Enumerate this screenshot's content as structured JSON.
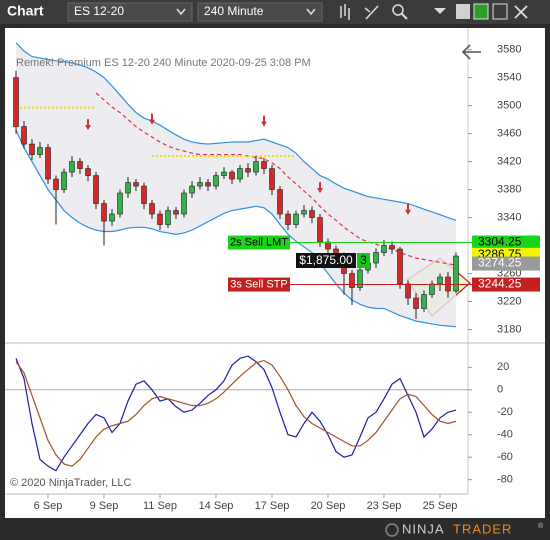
{
  "toolbar": {
    "tab": "Chart",
    "instrument": "ES 12-20",
    "interval": "240 Minute"
  },
  "chart_data": [
    {
      "type": "candlestick",
      "title": "Remek!  Premium  ES 12-20  240 Minute  2020-09-25 3:08 PM",
      "categories": [
        null,
        null,
        null,
        null,
        "6 Sep",
        null,
        null,
        null,
        null,
        null,
        null,
        "9 Sep",
        null,
        null,
        null,
        null,
        null,
        null,
        "11 Sep",
        null,
        null,
        null,
        null,
        null,
        null,
        "14 Sep",
        null,
        null,
        null,
        null,
        null,
        null,
        "17 Sep",
        null,
        null,
        null,
        null,
        null,
        null,
        "20 Sep",
        null,
        null,
        null,
        null,
        null,
        null,
        "23 Sep",
        null,
        null,
        null,
        null,
        null,
        null,
        "25 Sep",
        null,
        null
      ],
      "open": [
        3540,
        3470,
        3445,
        3430,
        3440,
        3395,
        3380,
        3405,
        3420,
        3410,
        3400,
        3360,
        3335,
        3345,
        3375,
        3390,
        3385,
        3360,
        3345,
        3330,
        3350,
        3345,
        3375,
        3385,
        3390,
        3385,
        3400,
        3405,
        3395,
        3410,
        3405,
        3420,
        3410,
        3380,
        3345,
        3330,
        3345,
        3350,
        3340,
        3305,
        3295,
        3285,
        3260,
        3240,
        3265,
        3275,
        3290,
        3300,
        3295,
        3245,
        3225,
        3210,
        3230,
        3245,
        3255,
        3235
      ],
      "high": [
        3550,
        3478,
        3452,
        3448,
        3445,
        3400,
        3410,
        3428,
        3425,
        3415,
        3405,
        3365,
        3352,
        3380,
        3398,
        3395,
        3390,
        3365,
        3350,
        3356,
        3355,
        3380,
        3392,
        3398,
        3395,
        3405,
        3412,
        3408,
        3415,
        3418,
        3428,
        3425,
        3415,
        3385,
        3350,
        3350,
        3358,
        3356,
        3345,
        3310,
        3300,
        3290,
        3265,
        3270,
        3282,
        3296,
        3308,
        3306,
        3298,
        3250,
        3232,
        3236,
        3250,
        3260,
        3262,
        3290
      ],
      "low": [
        3460,
        3438,
        3422,
        3425,
        3388,
        3330,
        3375,
        3398,
        3402,
        3392,
        3352,
        3300,
        3328,
        3340,
        3368,
        3378,
        3352,
        3338,
        3322,
        3325,
        3338,
        3340,
        3368,
        3380,
        3378,
        3380,
        3395,
        3388,
        3390,
        3398,
        3400,
        3402,
        3372,
        3338,
        3322,
        3325,
        3340,
        3332,
        3298,
        3285,
        3275,
        3230,
        3215,
        3235,
        3260,
        3268,
        3285,
        3288,
        3238,
        3215,
        3195,
        3205,
        3225,
        3235,
        3225,
        3232
      ],
      "close": [
        3470,
        3445,
        3430,
        3440,
        3395,
        3380,
        3405,
        3420,
        3410,
        3400,
        3360,
        3335,
        3345,
        3375,
        3390,
        3385,
        3360,
        3345,
        3330,
        3350,
        3345,
        3375,
        3385,
        3390,
        3385,
        3400,
        3405,
        3395,
        3410,
        3405,
        3420,
        3410,
        3380,
        3345,
        3330,
        3345,
        3350,
        3340,
        3305,
        3295,
        3285,
        3260,
        3240,
        3265,
        3275,
        3290,
        3300,
        3295,
        3245,
        3225,
        3210,
        3230,
        3245,
        3255,
        3235,
        3285
      ],
      "up_color": "#33b24a",
      "down_color": "#d42a2a",
      "band_fill": "#e9e9ee",
      "series": [
        {
          "color": "#2f8fe0",
          "style": "solid",
          "values": [
            3590,
            3578,
            3570,
            3568,
            3566,
            3564,
            3563,
            3561,
            3558,
            3554,
            3548,
            3540,
            3528,
            3515,
            3502,
            3490,
            3482,
            3478,
            3472,
            3465,
            3458,
            3452,
            3448,
            3446,
            3445,
            3446,
            3447,
            3448,
            3448,
            3448,
            3450,
            3452,
            3448,
            3444,
            3440,
            3432,
            3420,
            3410,
            3400,
            3395,
            3388,
            3382,
            3378,
            3374,
            3370,
            3368,
            3366,
            3364,
            3362,
            3360,
            3356,
            3352,
            3348,
            3344,
            3340,
            3336
          ]
        },
        {
          "color": "#2f8fe0",
          "style": "solid",
          "values": [
            3465,
            3440,
            3420,
            3400,
            3380,
            3365,
            3350,
            3340,
            3332,
            3326,
            3322,
            3320,
            3320,
            3322,
            3325,
            3326,
            3326,
            3324,
            3320,
            3318,
            3316,
            3318,
            3322,
            3328,
            3334,
            3340,
            3346,
            3350,
            3352,
            3354,
            3356,
            3354,
            3345,
            3330,
            3316,
            3306,
            3298,
            3290,
            3275,
            3260,
            3245,
            3232,
            3222,
            3216,
            3212,
            3210,
            3210,
            3205,
            3200,
            3196,
            3192,
            3190,
            3188,
            3186,
            3185,
            3184
          ]
        },
        {
          "color": "#e0303a",
          "style": "dashed",
          "values": [
            null,
            null,
            null,
            null,
            null,
            null,
            null,
            null,
            null,
            null,
            3518,
            3508,
            3498,
            3490,
            3480,
            3470,
            3462,
            3455,
            3448,
            3442,
            3438,
            3435,
            3432,
            3430,
            3430,
            3430,
            3430,
            3430,
            3430,
            3428,
            3426,
            3424,
            3418,
            3410,
            3398,
            3388,
            3378,
            3368,
            3356,
            3345,
            3336,
            3326,
            3318,
            3310,
            3305,
            3302,
            3298,
            3295,
            3290,
            3286,
            3282,
            3280,
            3278,
            3276,
            3274,
            3272
          ]
        },
        {
          "color": "#f0e000",
          "style": "dotted",
          "values": [
            3497,
            3497,
            3497,
            3497,
            3497,
            3497,
            3497,
            3497,
            3497,
            3497,
            3497,
            null,
            null,
            null,
            null,
            null,
            null,
            3428,
            3428,
            3428,
            3428,
            3428,
            3428,
            3428,
            3428,
            3428,
            3428,
            3428,
            3428,
            3428,
            3428,
            3428,
            3428,
            3428,
            3428,
            3428,
            null,
            null,
            null,
            null,
            null,
            null,
            null,
            null,
            null,
            null,
            null,
            null,
            null,
            null,
            null,
            null,
            null,
            null,
            null,
            null
          ]
        }
      ],
      "signals": {
        "color": "#d03030",
        "values": [
          null,
          null,
          null,
          null,
          null,
          null,
          null,
          null,
          null,
          3472,
          null,
          null,
          null,
          null,
          null,
          null,
          null,
          3480,
          null,
          null,
          null,
          null,
          null,
          null,
          null,
          null,
          null,
          null,
          null,
          null,
          null,
          3477,
          null,
          null,
          null,
          null,
          null,
          null,
          3382,
          null,
          null,
          null,
          null,
          null,
          null,
          null,
          null,
          null,
          null,
          3351,
          null,
          null,
          null,
          null,
          null,
          null
        ]
      },
      "orders": [
        {
          "label": "2s Sell LMT",
          "value": 3304.25,
          "color": "#19d419"
        },
        {
          "label": "3s Sell STP",
          "value": 3244.25,
          "color": "#c42020"
        }
      ],
      "price_markers": [
        {
          "value": 3304.25,
          "color": "#19d419",
          "text_color": "#000000"
        },
        {
          "value": 3286.75,
          "color": "#f5f500",
          "text_color": "#000000"
        },
        {
          "value": 3274.25,
          "color": "#9a9a9a",
          "text_color": "#ffffff"
        },
        {
          "value": 3244.25,
          "color": "#c42020",
          "text_color": "#ffffff"
        }
      ],
      "position": {
        "pnl": "$1,875.00",
        "quantity": 3
      },
      "ylim": [
        3165,
        3608
      ],
      "yticks": [
        3580,
        3540,
        3500,
        3460,
        3420,
        3380,
        3340,
        3260,
        3220,
        3180
      ]
    },
    {
      "type": "line",
      "series": [
        {
          "color": "#1c1ca8",
          "values": [
            28,
            10,
            -30,
            -62,
            -68,
            -72,
            -60,
            -50,
            -40,
            -30,
            -22,
            -25,
            -38,
            -30,
            -10,
            5,
            8,
            0,
            -10,
            -8,
            -15,
            -20,
            -18,
            -12,
            -5,
            0,
            8,
            22,
            28,
            30,
            25,
            18,
            2,
            -20,
            -40,
            -42,
            -30,
            -20,
            -28,
            -40,
            -55,
            -60,
            -58,
            -42,
            -25,
            -20,
            -8,
            5,
            10,
            -5,
            -20,
            -42,
            -35,
            -25,
            -20,
            -18
          ]
        },
        {
          "color": "#a0522d",
          "values": [
            25,
            15,
            -5,
            -25,
            -45,
            -58,
            -66,
            -68,
            -62,
            -52,
            -42,
            -35,
            -32,
            -30,
            -28,
            -22,
            -14,
            -8,
            -6,
            -8,
            -10,
            -12,
            -14,
            -14,
            -12,
            -8,
            -2,
            5,
            12,
            18,
            24,
            26,
            22,
            12,
            0,
            -14,
            -24,
            -30,
            -34,
            -38,
            -42,
            -46,
            -50,
            -50,
            -45,
            -38,
            -28,
            -18,
            -8,
            -4,
            -6,
            -14,
            -22,
            -28,
            -30,
            -28
          ]
        }
      ],
      "zero_line": true,
      "ylim": [
        -91,
        39
      ],
      "yticks": [
        20,
        0,
        -20,
        -40,
        -60,
        -80
      ]
    }
  ],
  "footer": {
    "copyright": "© 2020 NinjaTrader, LLC",
    "logo_ninja": "NINJA",
    "logo_trader": "TRADER",
    "logo_mark": "®"
  }
}
